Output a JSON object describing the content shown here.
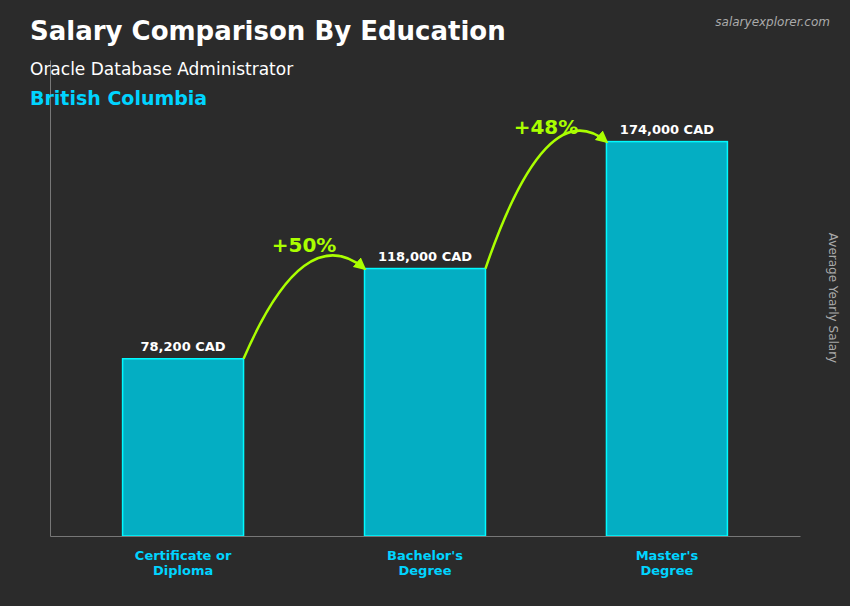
{
  "chart_data": {
    "type": "bar",
    "title": "Salary Comparison By Education",
    "subtitle": [
      "Oracle Database Administrator",
      "British Columbia"
    ],
    "watermark": "salaryexplorer.com",
    "ylabel": "Average Yearly Salary",
    "categories": [
      "Certificate or\nDiploma",
      "Bachelor's\nDegree",
      "Master's\nDegree"
    ],
    "values": [
      78200,
      118000,
      174000
    ],
    "value_labels": [
      "78,200 CAD",
      "118,000 CAD",
      "174,000 CAD"
    ],
    "data_labels": true,
    "color": "#00bcd4",
    "ylim": [
      0,
      210000
    ],
    "tick_labels": "x",
    "annotations": [
      {
        "text": "+50%",
        "color": "#aaff00"
      },
      {
        "text": "+48%",
        "color": "#aaff00"
      }
    ]
  }
}
